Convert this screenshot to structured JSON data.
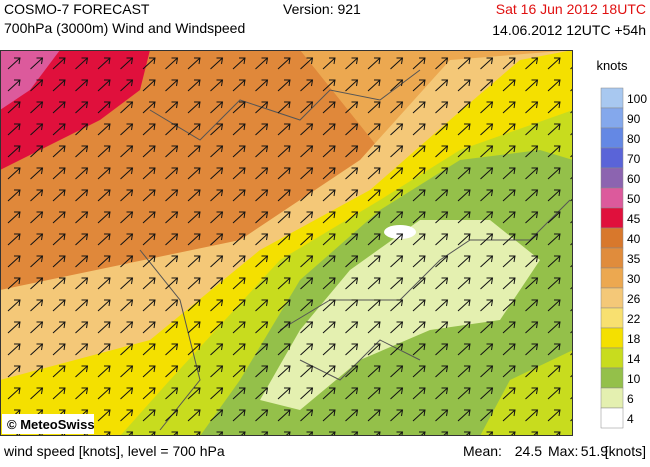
{
  "header": {
    "title": "COSMO-7 FORECAST",
    "subtitle": "700hPa (3000m) Wind and Windspeed",
    "version": "Version: 921",
    "valid_time": "Sat 16 Jun 2012 18UTC",
    "run_time": "14.06.2012 12UTC +54h"
  },
  "map": {
    "copyright": "© MeteoSwiss"
  },
  "legend": {
    "unit": "knots",
    "items": [
      {
        "label": "100",
        "color": "#a8c8f0"
      },
      {
        "label": "90",
        "color": "#84a8ec"
      },
      {
        "label": "80",
        "color": "#6488e4"
      },
      {
        "label": "70",
        "color": "#5a64d8"
      },
      {
        "label": "60",
        "color": "#8c64b0"
      },
      {
        "label": "50",
        "color": "#dc5a9c"
      },
      {
        "label": "45",
        "color": "#e0103c"
      },
      {
        "label": "40",
        "color": "#d8782c"
      },
      {
        "label": "35",
        "color": "#e08c3c"
      },
      {
        "label": "30",
        "color": "#eca850"
      },
      {
        "label": "26",
        "color": "#f4c878"
      },
      {
        "label": "22",
        "color": "#f8e070"
      },
      {
        "label": "18",
        "color": "#f4e000"
      },
      {
        "label": "14",
        "color": "#c8dc1e"
      },
      {
        "label": "10",
        "color": "#94c04a"
      },
      {
        "label": "6",
        "color": "#e4f0b0"
      },
      {
        "label": "4",
        "color": "#ffffff"
      }
    ]
  },
  "footer": {
    "description": "wind speed [knots], level = 700 hPa",
    "mean_label": "Mean:",
    "mean": 24.5,
    "max_label": "Max:",
    "max": 51.9,
    "unit": "[knots]"
  }
}
